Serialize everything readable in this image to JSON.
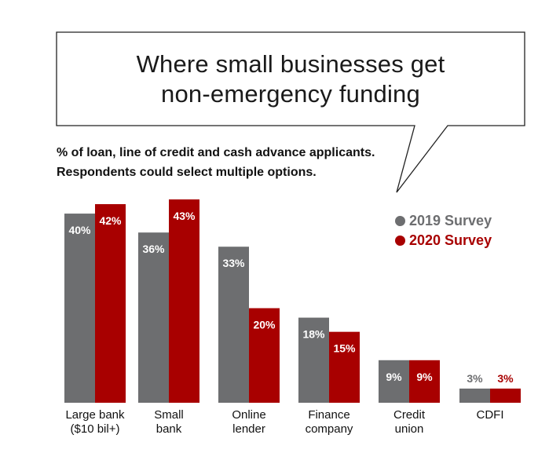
{
  "chart_data": {
    "type": "bar",
    "title": "Where small businesses get non-emergency funding",
    "title_lines": [
      "Where small businesses get",
      "non-emergency funding"
    ],
    "subtitle_lines": [
      "% of loan, line of credit and cash advance applicants.",
      "Respondents could select multiple options."
    ],
    "categories": [
      [
        "Large bank",
        "($10 bil+)"
      ],
      [
        "Small",
        "bank"
      ],
      [
        "Online",
        "lender"
      ],
      [
        "Finance",
        "company"
      ],
      [
        "Credit",
        "union"
      ],
      [
        "CDFI"
      ]
    ],
    "series": [
      {
        "name": "2019 Survey",
        "color": "#6d6e70",
        "values": [
          40,
          36,
          33,
          18,
          9,
          3
        ],
        "labels": [
          "40%",
          "36%",
          "33%",
          "18%",
          "9%",
          "3%"
        ]
      },
      {
        "name": "2020 Survey",
        "color": "#a80000",
        "values": [
          42,
          43,
          20,
          15,
          9,
          3
        ],
        "labels": [
          "42%",
          "43%",
          "20%",
          "15%",
          "9%",
          "3%"
        ]
      }
    ],
    "ylim": [
      0,
      43
    ],
    "xlabel": "",
    "ylabel": "",
    "grid": false,
    "legend": "right"
  }
}
